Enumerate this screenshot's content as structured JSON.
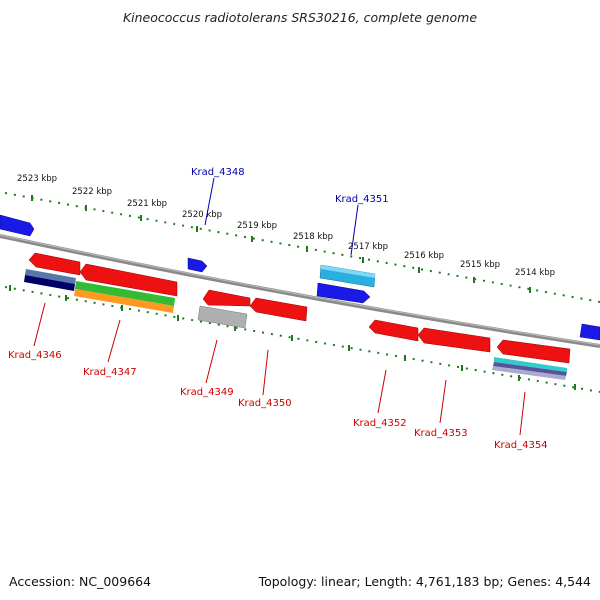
{
  "title": "Kineococcus radiotolerans SRS30216, complete genome",
  "footer": {
    "accession": "Accession: NC_009664",
    "topology": "Topology: linear; Length: 4,761,183 bp; Genes: 4,544"
  },
  "colors": {
    "backbone": "#7f7f7f",
    "tick": "#1f7a1f",
    "red": "#ee1111",
    "blue": "#1111dd",
    "cyan": "#22aadd",
    "gray": "#aaaaaa",
    "label_red": "#cc0000",
    "label_blue": "#0000aa"
  },
  "scale_labels": [
    "2523 kbp",
    "2522 kbp",
    "2521 kbp",
    "2520 kbp",
    "2519 kbp",
    "2518 kbp",
    "2517 kbp",
    "2516 kbp",
    "2515 kbp",
    "2514 kbp"
  ],
  "gene_labels": [
    {
      "name": "Krad_4348",
      "color": "blue"
    },
    {
      "name": "Krad_4351",
      "color": "blue"
    },
    {
      "name": "Krad_4346",
      "color": "red"
    },
    {
      "name": "Krad_4347",
      "color": "red"
    },
    {
      "name": "Krad_4349",
      "color": "red"
    },
    {
      "name": "Krad_4350",
      "color": "red"
    },
    {
      "name": "Krad_4352",
      "color": "red"
    },
    {
      "name": "Krad_4353",
      "color": "red"
    },
    {
      "name": "Krad_4354",
      "color": "red"
    }
  ]
}
